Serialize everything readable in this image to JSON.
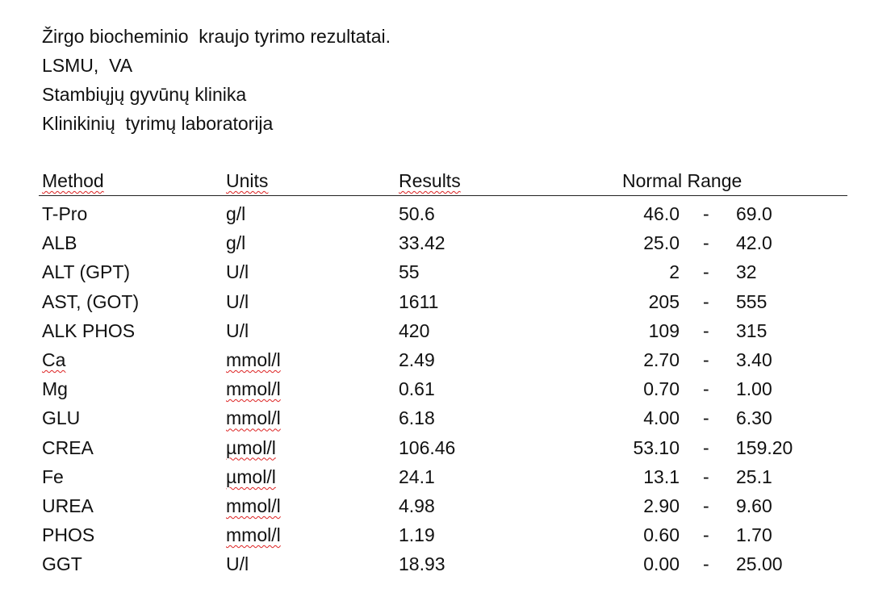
{
  "header": {
    "lines": [
      "Žirgo biocheminio  kraujo tyrimo rezultatai.",
      "LSMU,  VA",
      "Stambiųjų gyvūnų klinika",
      "Klinikinių  tyrimų laboratorija"
    ]
  },
  "table": {
    "columns": [
      "Method",
      "Units",
      "Results",
      "Normal Range"
    ],
    "range_separator": "-",
    "rows": [
      [
        "T-Pro",
        "g/l",
        "50.6",
        "46.0",
        "69.0"
      ],
      [
        "ALB",
        "g/l",
        "33.42",
        "25.0",
        "42.0"
      ],
      [
        "ALT (GPT)",
        "U/l",
        "55",
        "2",
        "32"
      ],
      [
        "AST, (GOT)",
        "U/l",
        "1611",
        "205",
        "555"
      ],
      [
        "ALK PHOS",
        "U/l",
        "420",
        "109",
        "315"
      ],
      [
        "Ca",
        "mmol/l",
        "2.49",
        "2.70",
        "3.40"
      ],
      [
        "Mg",
        "mmol/l",
        "0.61",
        "0.70",
        "1.00"
      ],
      [
        "GLU",
        "mmol/l",
        "6.18",
        "4.00",
        "6.30"
      ],
      [
        "CREA",
        "µmol/l",
        "106.46",
        "53.10",
        "159.20"
      ],
      [
        "Fe",
        "µmol/l",
        "24.1",
        "13.1",
        "25.1"
      ],
      [
        "UREA",
        "mmol/l",
        "4.98",
        "2.90",
        "9.60"
      ],
      [
        "PHOS",
        "mmol/l",
        "1.19",
        "0.60",
        "1.70"
      ],
      [
        "GGT",
        "U/l",
        "18.93",
        "0.00",
        "25.00"
      ]
    ]
  }
}
